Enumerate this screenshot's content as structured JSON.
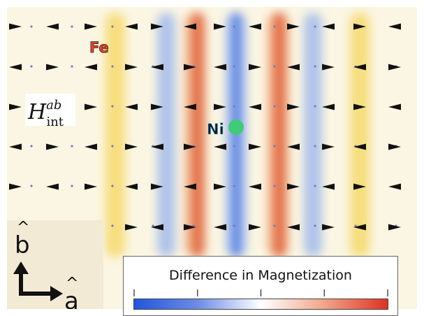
{
  "labels": {
    "fe": "Fe",
    "ni": "Ni",
    "field": "H",
    "field_sup": "ab",
    "field_sub": "int",
    "axis_b": "b",
    "axis_a": "a",
    "colorbar_title": "Difference in Magnetization"
  },
  "colors": {
    "positive": "#dd3322",
    "negative": "#2255dd",
    "fe_band": "#f6d86a",
    "ni_marker": "#3fcb78",
    "background": "#fbf6e3"
  },
  "colorbar": {
    "tick_count": 5
  }
}
